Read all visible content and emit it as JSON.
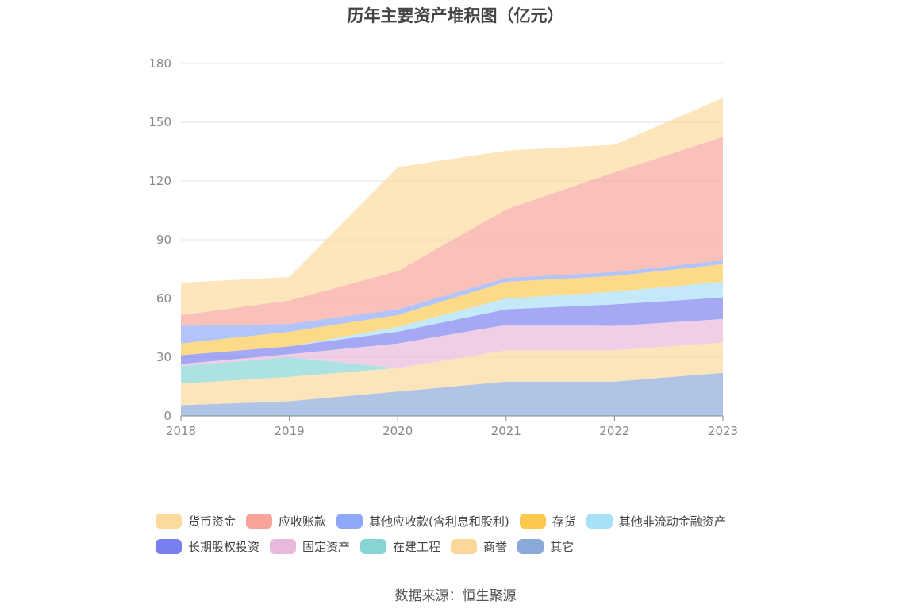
{
  "chart_data": {
    "type": "area",
    "stacked": true,
    "title": "历年主要资产堆积图（亿元）",
    "x": [
      "2018",
      "2019",
      "2020",
      "2021",
      "2022",
      "2023"
    ],
    "ylim": [
      0,
      180
    ],
    "yticks": [
      "0",
      "30",
      "60",
      "90",
      "120",
      "150",
      "180"
    ],
    "grid": true,
    "legend_position": "bottom",
    "series": [
      {
        "name": "其它",
        "color": "#8aa9d8",
        "values": [
          5.5,
          7.5,
          12.5,
          17.5,
          17.5,
          22
        ]
      },
      {
        "name": "商誉",
        "color": "#fbd89a",
        "values": [
          11,
          12.5,
          12,
          16,
          16,
          15.5
        ]
      },
      {
        "name": "在建工程",
        "color": "#86d4d4",
        "values": [
          9,
          10,
          0,
          0,
          0,
          0
        ]
      },
      {
        "name": "固定资产",
        "color": "#e9b8da",
        "values": [
          1,
          1.5,
          12.5,
          13,
          12.5,
          12
        ]
      },
      {
        "name": "长期股权投资",
        "color": "#7a7ff0",
        "values": [
          4.5,
          4,
          6,
          8,
          11,
          11
        ]
      },
      {
        "name": "其他非流动金融资产",
        "color": "#a8e0f8",
        "values": [
          0,
          0,
          2.5,
          5.5,
          6.5,
          8
        ]
      },
      {
        "name": "存货",
        "color": "#fcc94e",
        "values": [
          6,
          7.5,
          6,
          8.5,
          8,
          9
        ]
      },
      {
        "name": "其他应收款(含利息和股利)",
        "color": "#8fa8f8",
        "values": [
          9,
          4,
          3,
          2,
          2,
          2
        ]
      },
      {
        "name": "应收账款",
        "color": "#f8a39a",
        "values": [
          5.5,
          12,
          19.5,
          35,
          51,
          63
        ]
      },
      {
        "name": "货币资金",
        "color": "#fcd99c",
        "values": [
          16.5,
          12,
          53,
          30,
          14,
          20
        ]
      }
    ]
  },
  "legend": {
    "row1": [
      "货币资金",
      "应收账款",
      "其他应收款(含利息和股利)",
      "存货",
      "其他非流动金融资产"
    ],
    "row2": [
      "长期股权投资",
      "固定资产",
      "在建工程",
      "商誉",
      "其它"
    ],
    "row1_colors": [
      "#fcd99c",
      "#f8a39a",
      "#8fa8f8",
      "#fcc94e",
      "#a8e0f8"
    ],
    "row2_colors": [
      "#7a7ff0",
      "#e9b8da",
      "#86d4d4",
      "#fbd89a",
      "#8aa9d8"
    ]
  },
  "source": "数据来源：恒生聚源"
}
